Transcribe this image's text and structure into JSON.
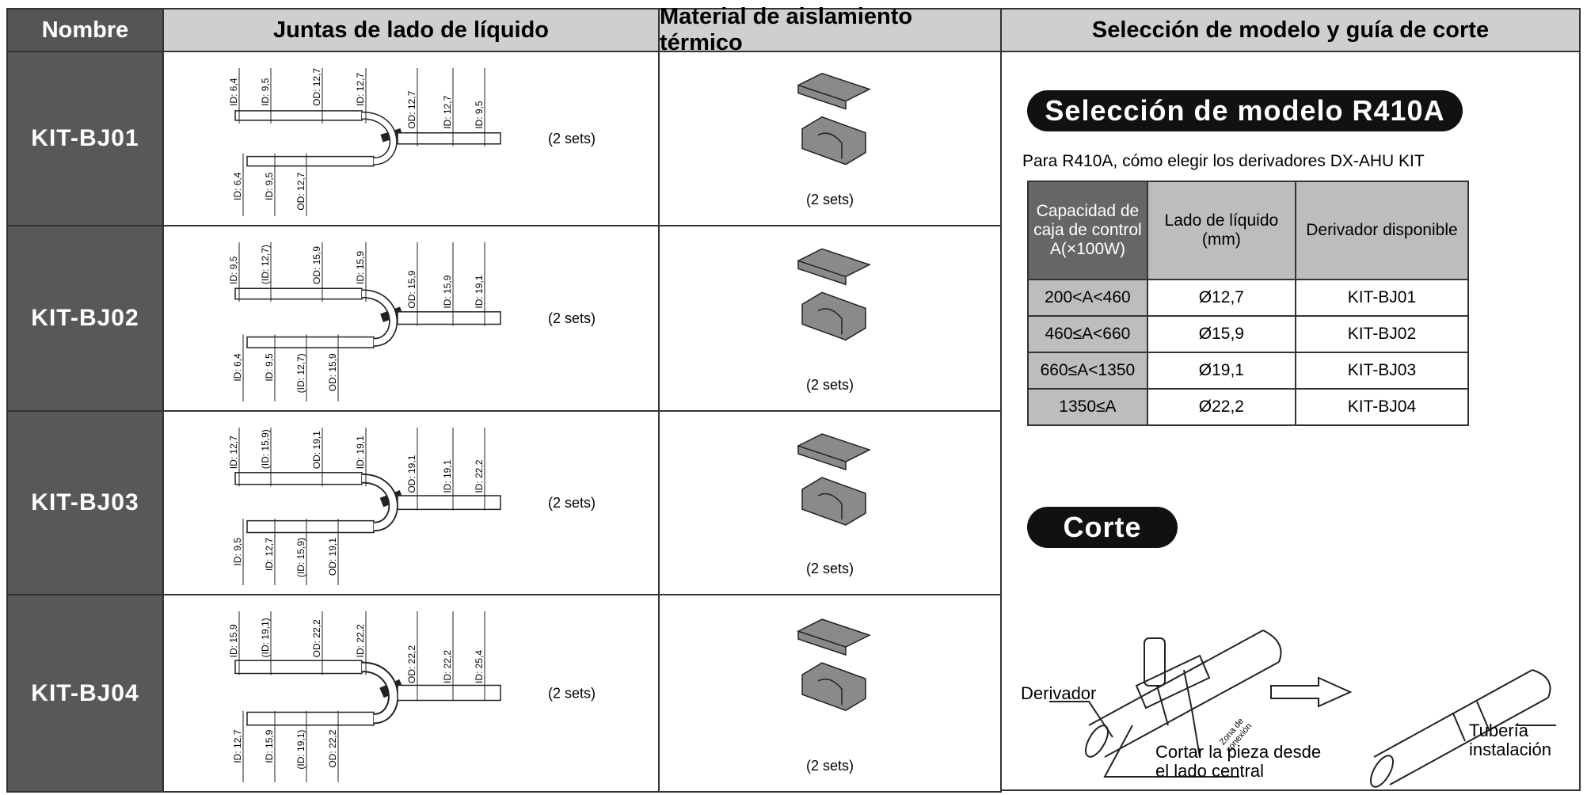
{
  "header": {
    "columns": [
      "Nombre",
      "Juntas de lado de líquido",
      "Material de aislamiento térmico",
      "Selección de modelo y guía de corte"
    ]
  },
  "rows": [
    {
      "name": "KIT-BJ01",
      "pipe_labels_top": [
        "ID: 6,4",
        "ID: 9,5",
        "OD: 12,7",
        "ID: 12,7",
        "OD: 12,7",
        "ID: 12,7",
        "ID: 9,5"
      ],
      "pipe_labels_bottom": [
        "ID: 6,4",
        "ID: 9,5",
        "OD: 12,7"
      ],
      "pipe_note": "(2 sets)",
      "insulation_note": "(2 sets)"
    },
    {
      "name": "KIT-BJ02",
      "pipe_labels_top": [
        "ID: 9,5",
        "(ID: 12,7)",
        "OD: 15,9",
        "ID: 15,9",
        "OD: 15,9",
        "ID: 15,9",
        "ID: 19,1"
      ],
      "pipe_labels_bottom": [
        "ID: 6,4",
        "ID: 9,5",
        "(ID: 12,7)",
        "OD: 15,9"
      ],
      "pipe_note": "(2 sets)",
      "insulation_note": "(2 sets)"
    },
    {
      "name": "KIT-BJ03",
      "pipe_labels_top": [
        "ID: 12,7",
        "(ID: 15,9)",
        "OD: 19,1",
        "ID: 19,1",
        "OD: 19,1",
        "ID: 19,1",
        "ID: 22,2"
      ],
      "pipe_labels_bottom": [
        "ID: 9,5",
        "ID: 12,7",
        "(ID: 15,9)",
        "OD: 19,1"
      ],
      "pipe_note": "(2 sets)",
      "insulation_note": "(2 sets)"
    },
    {
      "name": "KIT-BJ04",
      "pipe_labels_top": [
        "ID: 15,9",
        "(ID: 19,1)",
        "OD: 22,2",
        "ID: 22,2",
        "OD: 22,2",
        "ID: 22,2",
        "ID: 25,4"
      ],
      "pipe_labels_bottom": [
        "ID: 12,7",
        "ID: 15,9",
        "(ID: 19,1)",
        "OD: 22,2"
      ],
      "pipe_note": "(2 sets)",
      "insulation_note": "(2 sets)"
    }
  ],
  "selection": {
    "title": "Selección de modelo R410A",
    "description": "Para R410A, cómo elegir los derivadores DX-AHU KIT",
    "table": {
      "headers": [
        "Capacidad de caja de control A(×100W)",
        "Lado de líquido (mm)",
        "Derivador disponible"
      ],
      "rows": [
        [
          "200<A<460",
          "Ø12,7",
          "KIT-BJ01"
        ],
        [
          "460≤A<660",
          "Ø15,9",
          "KIT-BJ02"
        ],
        [
          "660≤A<1350",
          "Ø19,1",
          "KIT-BJ03"
        ],
        [
          "1350≤A",
          "Ø22,2",
          "KIT-BJ04"
        ]
      ]
    }
  },
  "cutting": {
    "title": "Corte",
    "derivador": "Derivador",
    "zona": "Zona de conexión",
    "cortar": "Cortar la pieza desde el lado central",
    "tuberia": "Tubería instalación"
  }
}
